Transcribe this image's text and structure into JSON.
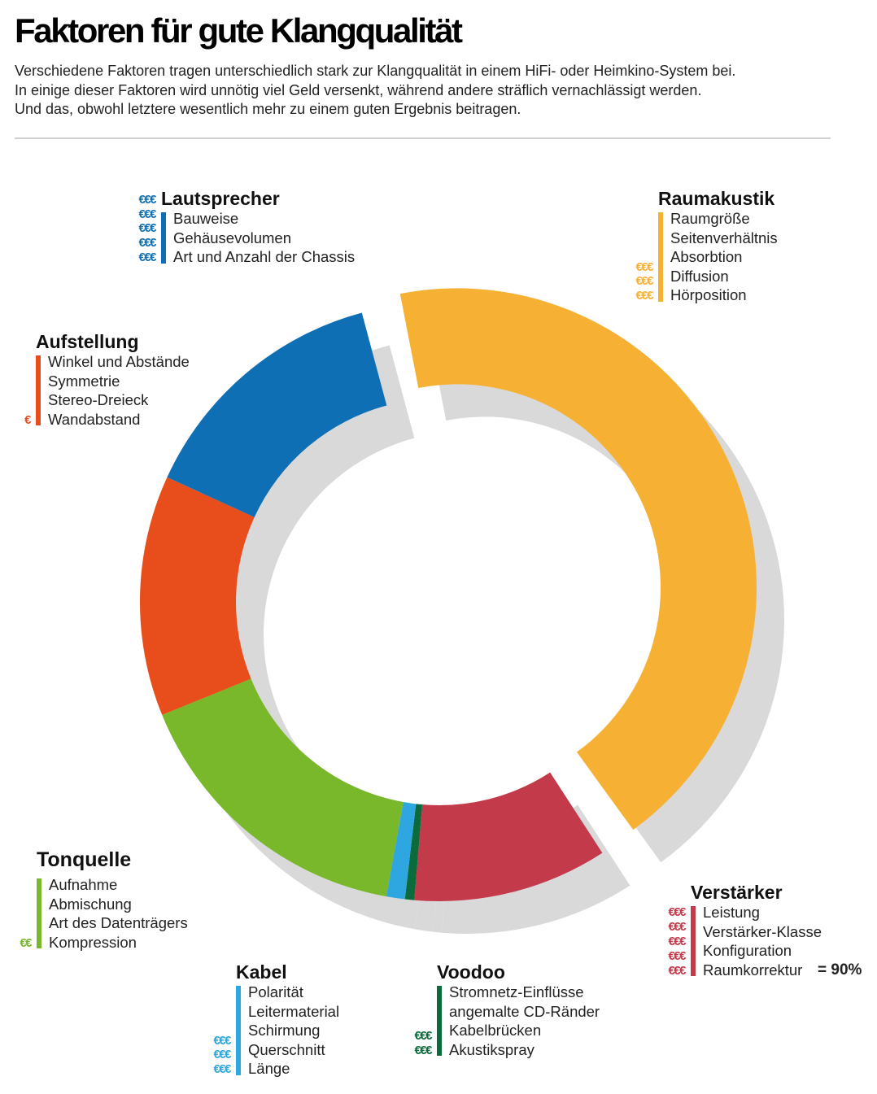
{
  "header": {
    "title": "Faktoren für gute Klangqualität",
    "subtitle_lines": [
      "Verschiedene Faktoren tragen unterschiedlich stark zur Klangqualität in einem HiFi- oder Heimkino-System bei.",
      "In einige dieser Faktoren wird unnötig viel Geld versenkt, während andere sträflich vernachlässigt werden.",
      "Und das, obwohl letztere wesentlich mehr zu einem guten Ergebnis beitragen."
    ]
  },
  "groups": [
    {
      "id": "lautsprecher",
      "title": "Lautsprecher",
      "color": "#0e6fb5",
      "items": [
        "Bauweise",
        "Gehäusevolumen",
        "Art und Anzahl der Chassis"
      ],
      "euros": [
        "€€€",
        "€€€",
        "€€€",
        "€€€",
        "€€€"
      ]
    },
    {
      "id": "raumakustik",
      "title": "Raumakustik",
      "color": "#f6b134",
      "items": [
        "Raumgröße",
        "Seitenverhältnis",
        "Absorbtion",
        "Diffusion",
        "Hörposition"
      ],
      "euros": [
        "€€€",
        "€€€",
        "€€€"
      ]
    },
    {
      "id": "aufstellung",
      "title": "Aufstellung",
      "color": "#e84e1b",
      "items": [
        "Winkel und Abstände",
        "Symmetrie",
        "Stereo-Dreieck",
        "Wandabstand"
      ],
      "euros": [
        "€"
      ]
    },
    {
      "id": "tonquelle",
      "title": "Tonquelle",
      "color": "#78b82a",
      "items": [
        "Aufnahme",
        "Abmischung",
        "Art des Datenträgers",
        "Kompression"
      ],
      "euros": [
        "€€"
      ]
    },
    {
      "id": "kabel",
      "title": "Kabel",
      "color": "#2ea7e0",
      "items": [
        "Polarität",
        "Leitermaterial",
        "Schirmung",
        "Querschnitt",
        "Länge"
      ],
      "euros": [
        "€€€",
        "€€€",
        "€€€"
      ]
    },
    {
      "id": "voodoo",
      "title": "Voodoo",
      "color": "#0b6b3a",
      "items": [
        "Stromnetz-Einflüsse",
        "angemalte CD-Ränder",
        "Kabelbrücken",
        "Akustikspray"
      ],
      "euros": [
        "€€€",
        "€€€"
      ]
    },
    {
      "id": "verstaerker",
      "title": "Verstärker",
      "color": "#c33a4a",
      "items": [
        "Leistung",
        "Verstärker-Klasse",
        "Konfiguration",
        "Raumkorrektur"
      ],
      "euros": [
        "€€€",
        "€€€",
        "€€€",
        "€€€",
        "€€€"
      ]
    }
  ],
  "total_label": "= 90%",
  "chart_data": {
    "type": "pie",
    "variant": "donut",
    "shadow_color": "#d9d9d9",
    "slices": [
      {
        "label": "Raumakustik",
        "value": 45,
        "color": "#f6b134",
        "exploded": true
      },
      {
        "label": "Verstärker",
        "value": 10.5,
        "color": "#c33a4a"
      },
      {
        "label": "Voodoo",
        "value": 0.5,
        "color": "#0b6b3a"
      },
      {
        "label": "Kabel",
        "value": 1,
        "color": "#2ea7e0"
      },
      {
        "label": "Tonquelle",
        "value": 16,
        "color": "#78b82a"
      },
      {
        "label": "Aufstellung",
        "value": 13,
        "color": "#e84e1b"
      },
      {
        "label": "Lautsprecher",
        "value": 14,
        "color": "#0e6fb5"
      }
    ]
  }
}
